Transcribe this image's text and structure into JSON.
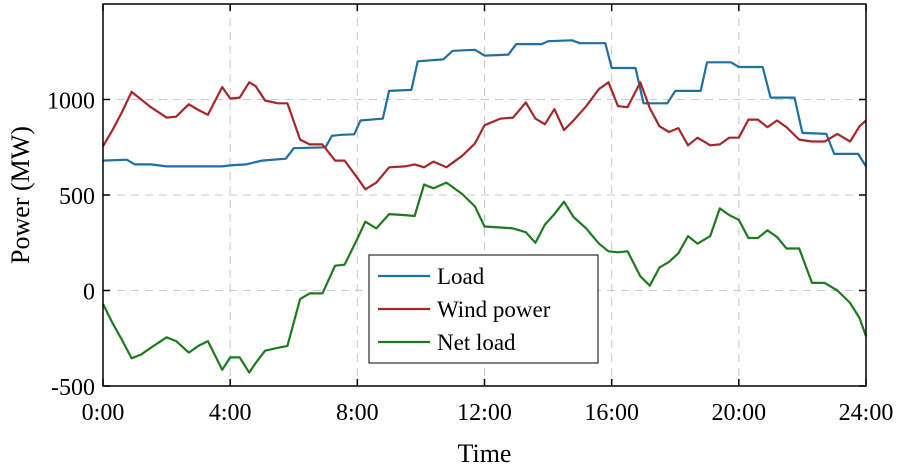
{
  "chart_data": {
    "type": "line",
    "xlabel": "Time",
    "ylabel": "Power (MW)",
    "xlim": [
      0,
      24
    ],
    "ylim": [
      -500,
      1500
    ],
    "grid": true,
    "legend_position": "center-bottom",
    "x_ticks": [
      {
        "value": 0,
        "label": "0:00"
      },
      {
        "value": 4,
        "label": "4:00"
      },
      {
        "value": 8,
        "label": "8:00"
      },
      {
        "value": 12,
        "label": "12:00"
      },
      {
        "value": 16,
        "label": "16:00"
      },
      {
        "value": 20,
        "label": "20:00"
      },
      {
        "value": 24,
        "label": "24:00"
      }
    ],
    "y_ticks": [
      {
        "value": -500,
        "label": "-500"
      },
      {
        "value": 0,
        "label": "0"
      },
      {
        "value": 500,
        "label": "500"
      },
      {
        "value": 1000,
        "label": "1000"
      }
    ],
    "series": [
      {
        "name": "Load",
        "color": "#1f6fa3",
        "points": [
          [
            0,
            680
          ],
          [
            0.75,
            685
          ],
          [
            1,
            660
          ],
          [
            1.5,
            660
          ],
          [
            2,
            650
          ],
          [
            3,
            650
          ],
          [
            3.75,
            650
          ],
          [
            4,
            655
          ],
          [
            4.5,
            660
          ],
          [
            5,
            680
          ],
          [
            5.75,
            690
          ],
          [
            6,
            745
          ],
          [
            7,
            750
          ],
          [
            7.2,
            810
          ],
          [
            7.5,
            815
          ],
          [
            7.9,
            818
          ],
          [
            8.1,
            890
          ],
          [
            8.8,
            900
          ],
          [
            9,
            1045
          ],
          [
            9.7,
            1050
          ],
          [
            9.9,
            1200
          ],
          [
            10.7,
            1210
          ],
          [
            11,
            1255
          ],
          [
            11.7,
            1260
          ],
          [
            12,
            1230
          ],
          [
            12.75,
            1235
          ],
          [
            13,
            1290
          ],
          [
            13.8,
            1290
          ],
          [
            14,
            1305
          ],
          [
            14.75,
            1310
          ],
          [
            15,
            1295
          ],
          [
            15.8,
            1295
          ],
          [
            16,
            1165
          ],
          [
            16.75,
            1165
          ],
          [
            17,
            980
          ],
          [
            17.75,
            980
          ],
          [
            18,
            1045
          ],
          [
            18.8,
            1045
          ],
          [
            19,
            1195
          ],
          [
            19.75,
            1195
          ],
          [
            20,
            1170
          ],
          [
            20.75,
            1170
          ],
          [
            21,
            1010
          ],
          [
            21.75,
            1010
          ],
          [
            22,
            825
          ],
          [
            22.75,
            820
          ],
          [
            23,
            715
          ],
          [
            23.75,
            715
          ],
          [
            24,
            650
          ]
        ]
      },
      {
        "name": "Wind power",
        "color": "#a3282a",
        "points": [
          [
            0,
            755
          ],
          [
            0.3,
            840
          ],
          [
            0.6,
            935
          ],
          [
            0.9,
            1040
          ],
          [
            1.2,
            1000
          ],
          [
            1.5,
            960
          ],
          [
            2,
            905
          ],
          [
            2.3,
            910
          ],
          [
            2.7,
            975
          ],
          [
            3,
            945
          ],
          [
            3.3,
            920
          ],
          [
            3.75,
            1065
          ],
          [
            4,
            1005
          ],
          [
            4.3,
            1010
          ],
          [
            4.6,
            1090
          ],
          [
            4.8,
            1070
          ],
          [
            5.1,
            995
          ],
          [
            5.5,
            980
          ],
          [
            5.8,
            980
          ],
          [
            6.2,
            790
          ],
          [
            6.5,
            765
          ],
          [
            6.9,
            765
          ],
          [
            7.3,
            680
          ],
          [
            7.6,
            680
          ],
          [
            8,
            590
          ],
          [
            8.25,
            530
          ],
          [
            8.6,
            565
          ],
          [
            9,
            645
          ],
          [
            9.5,
            650
          ],
          [
            9.8,
            660
          ],
          [
            10.1,
            645
          ],
          [
            10.4,
            675
          ],
          [
            10.8,
            645
          ],
          [
            11.3,
            705
          ],
          [
            11.7,
            770
          ],
          [
            12,
            865
          ],
          [
            12.5,
            900
          ],
          [
            12.9,
            905
          ],
          [
            13.3,
            985
          ],
          [
            13.6,
            900
          ],
          [
            13.9,
            870
          ],
          [
            14.2,
            950
          ],
          [
            14.5,
            840
          ],
          [
            14.8,
            890
          ],
          [
            15.2,
            965
          ],
          [
            15.6,
            1055
          ],
          [
            15.9,
            1090
          ],
          [
            16.2,
            965
          ],
          [
            16.5,
            960
          ],
          [
            16.9,
            1090
          ],
          [
            17.2,
            955
          ],
          [
            17.5,
            860
          ],
          [
            17.8,
            830
          ],
          [
            18.1,
            850
          ],
          [
            18.4,
            760
          ],
          [
            18.7,
            800
          ],
          [
            19.1,
            760
          ],
          [
            19.4,
            765
          ],
          [
            19.7,
            800
          ],
          [
            20,
            800
          ],
          [
            20.3,
            895
          ],
          [
            20.6,
            895
          ],
          [
            20.9,
            855
          ],
          [
            21.2,
            890
          ],
          [
            21.5,
            855
          ],
          [
            21.9,
            790
          ],
          [
            22.3,
            780
          ],
          [
            22.7,
            780
          ],
          [
            23.1,
            820
          ],
          [
            23.5,
            780
          ],
          [
            23.8,
            860
          ],
          [
            24,
            890
          ]
        ]
      },
      {
        "name": "Net load",
        "color": "#1e7a1e",
        "points": [
          [
            0,
            -70
          ],
          [
            0.3,
            -170
          ],
          [
            0.6,
            -260
          ],
          [
            0.9,
            -355
          ],
          [
            1.2,
            -335
          ],
          [
            1.5,
            -300
          ],
          [
            2,
            -245
          ],
          [
            2.3,
            -265
          ],
          [
            2.7,
            -325
          ],
          [
            3,
            -290
          ],
          [
            3.3,
            -265
          ],
          [
            3.75,
            -415
          ],
          [
            4,
            -350
          ],
          [
            4.3,
            -350
          ],
          [
            4.6,
            -430
          ],
          [
            4.8,
            -380
          ],
          [
            5.1,
            -315
          ],
          [
            5.5,
            -300
          ],
          [
            5.8,
            -290
          ],
          [
            6.2,
            -45
          ],
          [
            6.5,
            -15
          ],
          [
            6.9,
            -15
          ],
          [
            7.3,
            130
          ],
          [
            7.6,
            135
          ],
          [
            8,
            270
          ],
          [
            8.25,
            360
          ],
          [
            8.6,
            325
          ],
          [
            9,
            400
          ],
          [
            9.5,
            395
          ],
          [
            9.8,
            390
          ],
          [
            10.1,
            555
          ],
          [
            10.4,
            535
          ],
          [
            10.8,
            565
          ],
          [
            11.3,
            505
          ],
          [
            11.7,
            440
          ],
          [
            12,
            335
          ],
          [
            12.5,
            330
          ],
          [
            12.9,
            325
          ],
          [
            13.3,
            305
          ],
          [
            13.6,
            250
          ],
          [
            13.9,
            345
          ],
          [
            14.2,
            400
          ],
          [
            14.5,
            465
          ],
          [
            14.8,
            385
          ],
          [
            15.2,
            325
          ],
          [
            15.6,
            245
          ],
          [
            15.9,
            205
          ],
          [
            16.2,
            200
          ],
          [
            16.5,
            205
          ],
          [
            16.9,
            75
          ],
          [
            17.2,
            25
          ],
          [
            17.5,
            120
          ],
          [
            17.8,
            150
          ],
          [
            18.1,
            195
          ],
          [
            18.4,
            285
          ],
          [
            18.7,
            245
          ],
          [
            19.1,
            285
          ],
          [
            19.4,
            430
          ],
          [
            19.7,
            395
          ],
          [
            20,
            370
          ],
          [
            20.3,
            275
          ],
          [
            20.6,
            275
          ],
          [
            20.9,
            315
          ],
          [
            21.2,
            280
          ],
          [
            21.5,
            220
          ],
          [
            21.9,
            220
          ],
          [
            22.3,
            40
          ],
          [
            22.7,
            40
          ],
          [
            23.1,
            0
          ],
          [
            23.5,
            -65
          ],
          [
            23.8,
            -145
          ],
          [
            24,
            -240
          ]
        ]
      }
    ]
  }
}
